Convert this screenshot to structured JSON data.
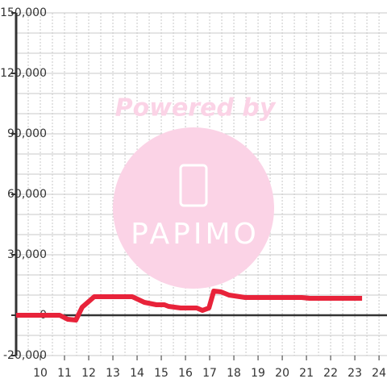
{
  "chart_data": {
    "type": "line",
    "watermark": {
      "caption": "Powered by",
      "logo": "PAPIMO"
    },
    "xlim": [
      9,
      24.33
    ],
    "xticks": [
      10,
      11,
      12,
      13,
      14,
      15,
      16,
      17,
      18,
      19,
      20,
      21,
      22,
      23,
      24
    ],
    "x_gridlines": [
      9.5,
      10,
      10.5,
      11,
      11.5,
      12,
      12.5,
      13,
      13.5,
      14,
      14.5,
      15,
      15.5,
      16,
      16.5,
      17,
      17.5,
      18,
      18.5,
      19,
      19.5,
      20,
      20.5,
      21,
      21.5,
      22,
      22.5,
      23,
      23.5,
      24
    ],
    "ylim": [
      -20000,
      150000
    ],
    "yticks": [
      {
        "value": -20000,
        "label": "-20,000"
      },
      0,
      {
        "value": 30000,
        "label": "30,000"
      },
      {
        "value": 60000,
        "label": "60,000"
      },
      {
        "value": 90000,
        "label": "90,000"
      },
      {
        "value": 120000,
        "label": "120,000"
      },
      {
        "value": 150000,
        "label": "150,000"
      }
    ],
    "y_gridlines": [
      -10000,
      10000,
      20000,
      40000,
      50000,
      70000,
      80000,
      100000,
      110000,
      130000,
      140000
    ],
    "grid": true,
    "series": [
      {
        "color": "#e8233a",
        "x": [
          9.0,
          10.8,
          11.13,
          11.47,
          11.73,
          12.23,
          13.8,
          14.3,
          14.8,
          15.13,
          15.3,
          15.8,
          16.47,
          16.7,
          16.97,
          17.17,
          17.47,
          17.8,
          18.47,
          20.8,
          21.13,
          23.3
        ],
        "values": [
          0,
          0,
          -2000,
          -2400,
          4000,
          9200,
          9200,
          6400,
          5200,
          5200,
          4400,
          3600,
          3600,
          2400,
          3600,
          12000,
          11600,
          10000,
          8800,
          8800,
          8400,
          8400
        ]
      }
    ]
  }
}
